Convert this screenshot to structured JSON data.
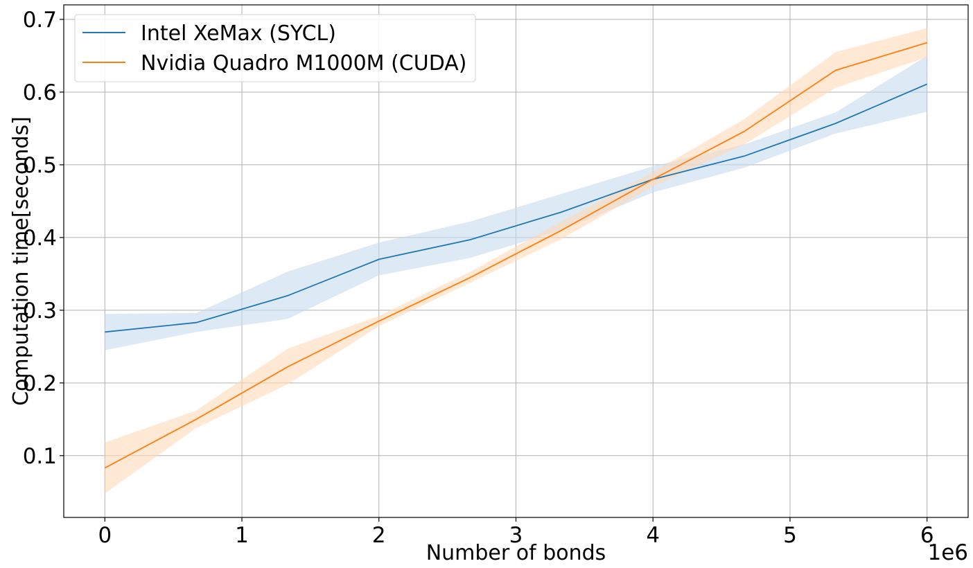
{
  "chart_data": {
    "type": "line",
    "title": "",
    "xlabel": "Number of bonds",
    "ylabel": "Computation time[seconds]",
    "x_offset_label": "1e6",
    "xlim": [
      -0.3,
      6.3
    ],
    "ylim": [
      0.015,
      0.72
    ],
    "xticks": [
      0,
      1,
      2,
      3,
      4,
      5,
      6
    ],
    "xtick_labels": [
      "0",
      "1",
      "2",
      "3",
      "4",
      "5",
      "6"
    ],
    "yticks": [
      0.1,
      0.2,
      0.3,
      0.4,
      0.5,
      0.6,
      0.7
    ],
    "ytick_labels": [
      "0.1",
      "0.2",
      "0.3",
      "0.4",
      "0.5",
      "0.6",
      "0.7"
    ],
    "grid": true,
    "legend_position": "upper-left",
    "x": [
      0,
      0.667,
      1.333,
      2,
      2.667,
      3.333,
      4,
      4.667,
      5.333,
      6
    ],
    "series": [
      {
        "name": "Intel XeMax (SYCL)",
        "color": "#1f77b4",
        "band_color": "#c6dbef",
        "values": [
          0.27,
          0.283,
          0.32,
          0.37,
          0.397,
          0.435,
          0.48,
          0.512,
          0.557,
          0.611
        ],
        "lower": [
          0.245,
          0.27,
          0.288,
          0.348,
          0.372,
          0.41,
          0.462,
          0.496,
          0.543,
          0.573
        ],
        "upper": [
          0.295,
          0.296,
          0.353,
          0.393,
          0.422,
          0.46,
          0.498,
          0.528,
          0.572,
          0.65
        ]
      },
      {
        "name": "Nvidia Quadro M1000M (CUDA)",
        "color": "#ff7f0e",
        "band_color": "#ffd9b8",
        "values": [
          0.083,
          0.15,
          0.222,
          0.285,
          0.345,
          0.41,
          0.48,
          0.546,
          0.63,
          0.668
        ],
        "lower": [
          0.048,
          0.138,
          0.198,
          0.278,
          0.338,
          0.398,
          0.47,
          0.528,
          0.606,
          0.648
        ],
        "upper": [
          0.118,
          0.162,
          0.247,
          0.292,
          0.353,
          0.422,
          0.49,
          0.563,
          0.655,
          0.688
        ]
      }
    ]
  }
}
